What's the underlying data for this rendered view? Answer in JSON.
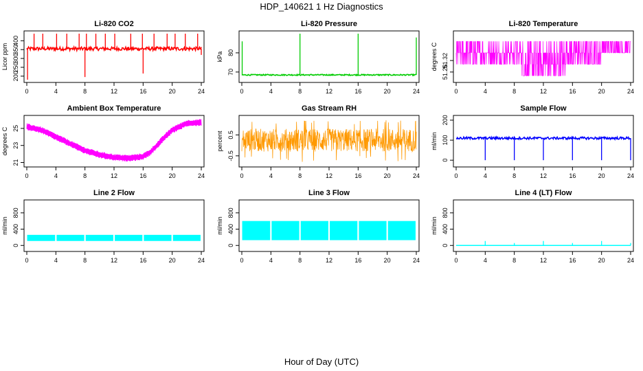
{
  "title": "HDP_140621  1 Hz Diagnostics",
  "xlabel": "Hour of Day (UTC)",
  "chart_data": [
    {
      "type": "line",
      "title": "Li-820 CO2",
      "ylabel": "Licor ppm",
      "xlim": [
        0,
        24
      ],
      "ylim": [
        180,
        440
      ],
      "xticks": [
        0,
        4,
        8,
        12,
        16,
        20,
        24
      ],
      "yticks": [
        200,
        250,
        300,
        350,
        400
      ],
      "color": "#ff0000",
      "style": "spiky",
      "series": [
        {
          "base": 355,
          "noise": 10,
          "up_spikes": [
            [
              1,
              440
            ],
            [
              2.2,
              440
            ],
            [
              4.1,
              440
            ],
            [
              5.5,
              440
            ],
            [
              7.2,
              440
            ],
            [
              8.2,
              440
            ],
            [
              9.5,
              440
            ],
            [
              10.8,
              440
            ],
            [
              12.1,
              440
            ],
            [
              14.3,
              440
            ],
            [
              15.9,
              440
            ],
            [
              17.5,
              440
            ],
            [
              19.3,
              440
            ],
            [
              20.4,
              440
            ],
            [
              21.8,
              440
            ],
            [
              23.5,
              440
            ]
          ],
          "down_spikes": [
            [
              0.1,
              180
            ],
            [
              8,
              195
            ],
            [
              16,
              215
            ],
            [
              24,
              320
            ]
          ]
        }
      ]
    },
    {
      "type": "line",
      "title": "Li-820 Pressure",
      "ylabel": "kPa",
      "xlim": [
        0,
        24
      ],
      "ylim": [
        66,
        90
      ],
      "xticks": [
        0,
        4,
        8,
        12,
        16,
        20,
        24
      ],
      "yticks": [
        70,
        80
      ],
      "color": "#00cc00",
      "style": "spiky",
      "series": [
        {
          "base": 68.5,
          "noise": 0.3,
          "up_spikes": [
            [
              0.05,
              86
            ],
            [
              8,
              90
            ],
            [
              16,
              90
            ],
            [
              24,
              88
            ]
          ],
          "down_spikes": []
        }
      ]
    },
    {
      "type": "line",
      "title": "Li-820 Temperature",
      "ylabel": "degrees C",
      "xlim": [
        0,
        24
      ],
      "ylim": [
        51.22,
        51.46
      ],
      "xticks": [
        0,
        4,
        8,
        12,
        16,
        20,
        24
      ],
      "yticks": [
        51.26,
        51.32
      ],
      "color": "#ff00ff",
      "style": "quantized",
      "series": [
        {
          "levels": [
            51.24,
            51.3,
            51.36,
            51.42
          ]
        }
      ]
    },
    {
      "type": "line",
      "title": "Ambient Box Temperature",
      "ylabel": "degrees C",
      "xlim": [
        0,
        24
      ],
      "ylim": [
        20.8,
        26.2
      ],
      "xticks": [
        0,
        4,
        8,
        12,
        16,
        20,
        24
      ],
      "yticks": [
        21,
        23,
        25
      ],
      "color": "#ff00ff",
      "style": "band",
      "series": [
        {
          "x": [
            0,
            2,
            4,
            6,
            8,
            10,
            12,
            14,
            16,
            17,
            18,
            19,
            20,
            22,
            24
          ],
          "y": [
            25.2,
            24.8,
            24,
            23.2,
            22.4,
            21.9,
            21.6,
            21.5,
            21.7,
            22.2,
            23.1,
            24,
            24.8,
            25.6,
            25.7
          ],
          "spread": 0.4
        }
      ]
    },
    {
      "type": "line",
      "title": "Gas Stream RH",
      "ylabel": "percent",
      "xlim": [
        0,
        24
      ],
      "ylim": [
        -0.9,
        1.3
      ],
      "xticks": [
        0,
        4,
        8,
        12,
        16,
        20,
        24
      ],
      "yticks": [
        -0.5,
        0.5
      ],
      "color": "#ff9900",
      "style": "noise",
      "series": [
        {
          "base": 0.25,
          "half_range": 0.55,
          "spike_min": -0.8,
          "spike_max": 1.2
        }
      ]
    },
    {
      "type": "line",
      "title": "Sample Flow",
      "ylabel": "ml/min",
      "xlim": [
        0,
        24
      ],
      "ylim": [
        -20,
        210
      ],
      "xticks": [
        0,
        4,
        8,
        12,
        16,
        20,
        24
      ],
      "yticks": [
        0,
        100,
        200
      ],
      "color": "#0000ff",
      "style": "spiky",
      "series": [
        {
          "base": 110,
          "noise": 6,
          "up_spikes": [],
          "down_spikes": [
            [
              4,
              0
            ],
            [
              8,
              0
            ],
            [
              12,
              0
            ],
            [
              16,
              0
            ],
            [
              20,
              0
            ],
            [
              24,
              0
            ]
          ]
        }
      ]
    },
    {
      "type": "area",
      "title": "Line 2 Flow",
      "ylabel": "ml/min",
      "xlim": [
        0,
        24
      ],
      "ylim": [
        -80,
        1050
      ],
      "xticks": [
        0,
        4,
        8,
        12,
        16,
        20,
        24
      ],
      "yticks": [
        0,
        400,
        800
      ],
      "color": "#00ffff",
      "style": "blocks",
      "series": [
        {
          "low": 110,
          "high": 260,
          "gaps": [
            4,
            8,
            12,
            16,
            20
          ],
          "end": 24
        }
      ]
    },
    {
      "type": "area",
      "title": "Line 3 Flow",
      "ylabel": "ml/min",
      "xlim": [
        0,
        24
      ],
      "ylim": [
        -80,
        1050
      ],
      "xticks": [
        0,
        4,
        8,
        12,
        16,
        20,
        24
      ],
      "yticks": [
        0,
        400,
        800
      ],
      "color": "#00ffff",
      "style": "blocks",
      "series": [
        {
          "low": 130,
          "high": 600,
          "gaps": [
            4,
            8,
            12,
            16,
            20
          ],
          "end": 24
        }
      ]
    },
    {
      "type": "line",
      "title": "Line 4 (LT) Flow",
      "ylabel": "ml/min",
      "xlim": [
        0,
        24
      ],
      "ylim": [
        -80,
        1050
      ],
      "xticks": [
        0,
        4,
        8,
        12,
        16,
        20,
        24
      ],
      "yticks": [
        0,
        400,
        800
      ],
      "color": "#00ffff",
      "style": "spiky",
      "series": [
        {
          "base": 0,
          "noise": 0,
          "up_spikes": [
            [
              4,
              110
            ],
            [
              8,
              60
            ],
            [
              12,
              110
            ],
            [
              16,
              60
            ],
            [
              20,
              110
            ],
            [
              24,
              60
            ]
          ],
          "down_spikes": []
        }
      ]
    }
  ]
}
